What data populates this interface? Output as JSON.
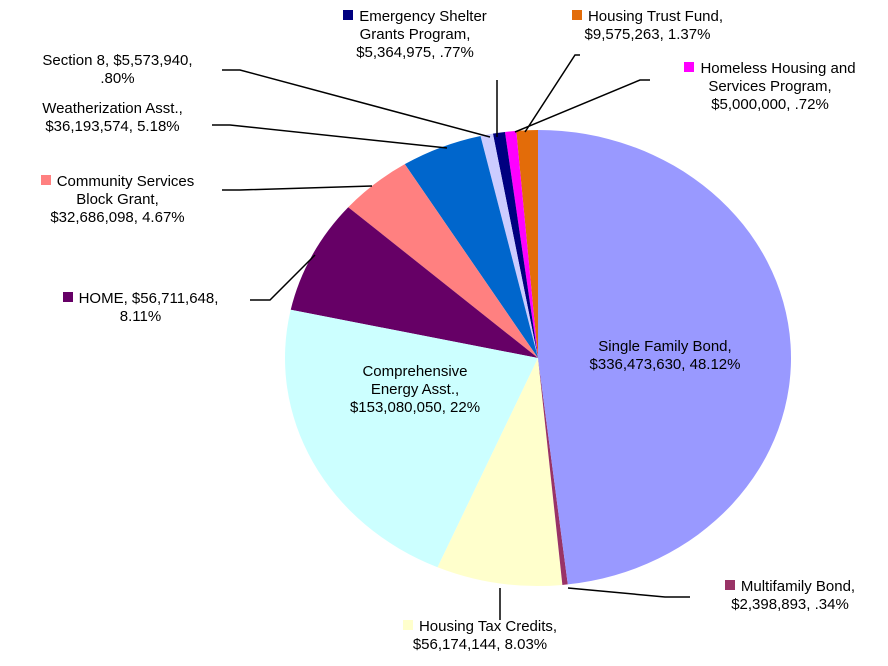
{
  "chart_data": {
    "type": "pie",
    "categories": [
      "Single Family Bond,",
      "Multifamily Bond,",
      "Housing Tax Credits,",
      "Comprehensive Energy Asst.,",
      "HOME,",
      "Community Services Block Grant,",
      "Weatherization Asst.,",
      "Section 8,",
      "Emergency Shelter Grants Program,",
      "Homeless Housing and Services Program,",
      "Housing Trust Fund,"
    ],
    "values": [
      336473630,
      2398893,
      56174144,
      153080050,
      56711648,
      32686098,
      36193574,
      5573940,
      5364975,
      5000000,
      9575263
    ],
    "value_labels": [
      "$336,473,630, 48.12%",
      "$2,398,893, .34%",
      "$56,174,144, 8.03%",
      "$153,080,050, 22%",
      "$56,711,648, 8.11%",
      "$32,686,098, 4.67%",
      "$36,193,574, 5.18%",
      "$5,573,940, .80%",
      "$5,364,975, .77%",
      "$5,000,000, .72%",
      "$9,575,263, 1.37%"
    ],
    "colors": [
      "#9999ff",
      "#993366",
      "#ffffcc",
      "#ccffff",
      "#660066",
      "#ff8080",
      "#0066cc",
      "#ccccff",
      "#000080",
      "#ff00ff",
      "#e36c09"
    ]
  }
}
